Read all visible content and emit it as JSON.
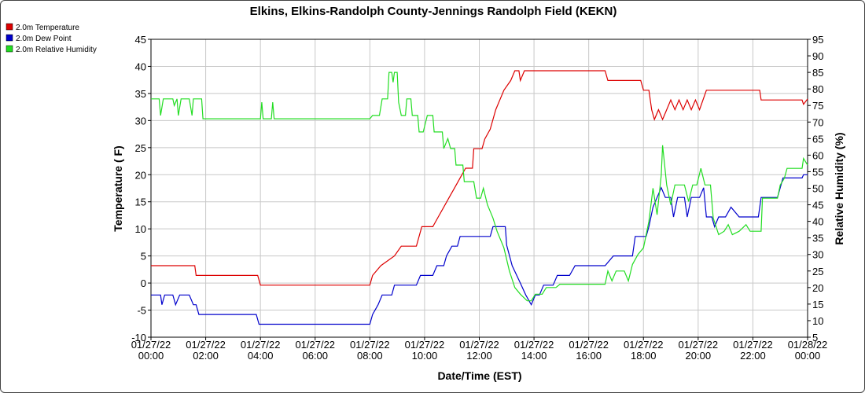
{
  "chart_data": {
    "type": "line",
    "title": "Elkins, Elkins-Randolph County-Jennings Randolph Field (KEKN)",
    "xlabel": "Date/Time (EST)",
    "ylabel": "Temperature ( F)",
    "y2label": "Relative Humidity (%)",
    "ylim": [
      -10,
      45
    ],
    "y2lim": [
      5,
      95
    ],
    "xlim": [
      0,
      24
    ],
    "grid": true,
    "legend_position": "top-left",
    "x_ticks": [
      {
        "hours": 0,
        "date": "01/27/22",
        "time": "00:00"
      },
      {
        "hours": 2,
        "date": "01/27/22",
        "time": "02:00"
      },
      {
        "hours": 4,
        "date": "01/27/22",
        "time": "04:00"
      },
      {
        "hours": 6,
        "date": "01/27/22",
        "time": "06:00"
      },
      {
        "hours": 8,
        "date": "01/27/22",
        "time": "08:00"
      },
      {
        "hours": 10,
        "date": "01/27/22",
        "time": "10:00"
      },
      {
        "hours": 12,
        "date": "01/27/22",
        "time": "12:00"
      },
      {
        "hours": 14,
        "date": "01/27/22",
        "time": "14:00"
      },
      {
        "hours": 16,
        "date": "01/27/22",
        "time": "16:00"
      },
      {
        "hours": 18,
        "date": "01/27/22",
        "time": "18:00"
      },
      {
        "hours": 20,
        "date": "01/27/22",
        "time": "20:00"
      },
      {
        "hours": 22,
        "date": "01/27/22",
        "time": "22:00"
      },
      {
        "hours": 24,
        "date": "01/28/22",
        "time": "00:00"
      }
    ],
    "y_ticks": [
      -10,
      -5,
      0,
      5,
      10,
      15,
      20,
      25,
      30,
      35,
      40,
      45
    ],
    "y2_ticks": [
      5,
      10,
      15,
      20,
      25,
      30,
      35,
      40,
      45,
      50,
      55,
      60,
      65,
      70,
      75,
      80,
      85,
      90,
      95
    ],
    "series": [
      {
        "name": "2.0m Temperature",
        "color": "#dd0000",
        "axis": "left",
        "points": [
          [
            0,
            3.2
          ],
          [
            1.6,
            3.2
          ],
          [
            1.65,
            1.4
          ],
          [
            3.9,
            1.4
          ],
          [
            4.0,
            -0.4
          ],
          [
            8.0,
            -0.4
          ],
          [
            8.1,
            1.4
          ],
          [
            8.4,
            3.2
          ],
          [
            8.9,
            5.0
          ],
          [
            9.15,
            6.8
          ],
          [
            9.7,
            6.8
          ],
          [
            9.9,
            10.4
          ],
          [
            10.3,
            10.4
          ],
          [
            10.5,
            12.2
          ],
          [
            10.7,
            14.0
          ],
          [
            10.9,
            15.8
          ],
          [
            11.1,
            17.6
          ],
          [
            11.3,
            19.4
          ],
          [
            11.5,
            21.2
          ],
          [
            11.75,
            21.2
          ],
          [
            11.8,
            24.8
          ],
          [
            12.1,
            24.8
          ],
          [
            12.2,
            26.6
          ],
          [
            12.4,
            28.4
          ],
          [
            12.6,
            32.0
          ],
          [
            12.9,
            35.6
          ],
          [
            13.15,
            37.4
          ],
          [
            13.3,
            39.2
          ],
          [
            13.45,
            39.2
          ],
          [
            13.5,
            37.4
          ],
          [
            13.65,
            39.2
          ],
          [
            16.6,
            39.2
          ],
          [
            16.7,
            37.4
          ],
          [
            17.9,
            37.4
          ],
          [
            18.0,
            35.6
          ],
          [
            18.2,
            35.6
          ],
          [
            18.3,
            32.0
          ],
          [
            18.4,
            30.2
          ],
          [
            18.55,
            32.0
          ],
          [
            18.7,
            30.2
          ],
          [
            18.85,
            32.0
          ],
          [
            19.0,
            33.8
          ],
          [
            19.15,
            32.0
          ],
          [
            19.3,
            33.8
          ],
          [
            19.45,
            32.0
          ],
          [
            19.6,
            33.8
          ],
          [
            19.75,
            32.0
          ],
          [
            19.9,
            33.8
          ],
          [
            20.05,
            32.0
          ],
          [
            20.3,
            35.6
          ],
          [
            21.9,
            35.6
          ],
          [
            22.25,
            35.6
          ],
          [
            22.3,
            33.8
          ],
          [
            23.8,
            33.8
          ],
          [
            23.85,
            33.0
          ],
          [
            24.0,
            34.0
          ]
        ]
      },
      {
        "name": "2.0m Dew Point",
        "color": "#0000cc",
        "axis": "left",
        "points": [
          [
            0,
            -2.2
          ],
          [
            0.35,
            -2.2
          ],
          [
            0.4,
            -4.0
          ],
          [
            0.5,
            -2.2
          ],
          [
            0.8,
            -2.2
          ],
          [
            0.9,
            -4.0
          ],
          [
            1.05,
            -2.2
          ],
          [
            1.4,
            -2.2
          ],
          [
            1.55,
            -4.0
          ],
          [
            1.65,
            -4.0
          ],
          [
            1.75,
            -5.8
          ],
          [
            3.85,
            -5.8
          ],
          [
            3.95,
            -7.6
          ],
          [
            8.0,
            -7.6
          ],
          [
            8.1,
            -5.8
          ],
          [
            8.3,
            -4.0
          ],
          [
            8.45,
            -2.2
          ],
          [
            8.8,
            -2.2
          ],
          [
            8.9,
            -0.4
          ],
          [
            9.7,
            -0.4
          ],
          [
            9.85,
            1.4
          ],
          [
            10.3,
            1.4
          ],
          [
            10.45,
            3.2
          ],
          [
            10.7,
            3.2
          ],
          [
            10.8,
            5.0
          ],
          [
            11.0,
            6.8
          ],
          [
            11.2,
            6.8
          ],
          [
            11.3,
            8.6
          ],
          [
            12.4,
            8.6
          ],
          [
            12.5,
            10.4
          ],
          [
            12.95,
            10.4
          ],
          [
            13.0,
            7.0
          ],
          [
            13.2,
            3.2
          ],
          [
            13.5,
            0.0
          ],
          [
            13.7,
            -2.2
          ],
          [
            13.9,
            -4.0
          ],
          [
            14.05,
            -2.2
          ],
          [
            14.2,
            -2.2
          ],
          [
            14.35,
            -0.4
          ],
          [
            14.7,
            -0.4
          ],
          [
            14.85,
            1.4
          ],
          [
            15.3,
            1.4
          ],
          [
            15.5,
            3.2
          ],
          [
            16.6,
            3.2
          ],
          [
            16.9,
            5.0
          ],
          [
            17.6,
            5.0
          ],
          [
            17.7,
            8.6
          ],
          [
            18.1,
            8.6
          ],
          [
            18.2,
            10.4
          ],
          [
            18.35,
            14.0
          ],
          [
            18.5,
            15.8
          ],
          [
            18.65,
            17.6
          ],
          [
            18.8,
            15.8
          ],
          [
            19.0,
            15.8
          ],
          [
            19.1,
            12.2
          ],
          [
            19.25,
            15.8
          ],
          [
            19.5,
            15.8
          ],
          [
            19.6,
            12.2
          ],
          [
            19.75,
            15.8
          ],
          [
            20.05,
            15.8
          ],
          [
            20.2,
            17.6
          ],
          [
            20.3,
            12.2
          ],
          [
            20.5,
            12.2
          ],
          [
            20.6,
            10.4
          ],
          [
            20.75,
            12.2
          ],
          [
            21.0,
            12.2
          ],
          [
            21.2,
            14.0
          ],
          [
            21.5,
            12.2
          ],
          [
            22.2,
            12.2
          ],
          [
            22.3,
            15.8
          ],
          [
            22.9,
            15.8
          ],
          [
            23.0,
            17.6
          ],
          [
            23.1,
            19.4
          ],
          [
            23.8,
            19.4
          ],
          [
            23.85,
            20.0
          ],
          [
            24.0,
            20.0
          ]
        ]
      },
      {
        "name": "2.0m Relative Humidity",
        "color": "#22dd22",
        "axis": "right",
        "points": [
          [
            0,
            77
          ],
          [
            0.3,
            77
          ],
          [
            0.35,
            72
          ],
          [
            0.45,
            77
          ],
          [
            0.8,
            77
          ],
          [
            0.85,
            75
          ],
          [
            0.95,
            77
          ],
          [
            1.0,
            72
          ],
          [
            1.1,
            77
          ],
          [
            1.4,
            77
          ],
          [
            1.5,
            72
          ],
          [
            1.55,
            77
          ],
          [
            1.85,
            77
          ],
          [
            1.9,
            71
          ],
          [
            4.0,
            71
          ],
          [
            4.05,
            76
          ],
          [
            4.1,
            71
          ],
          [
            4.4,
            71
          ],
          [
            4.45,
            76
          ],
          [
            4.5,
            71
          ],
          [
            8.0,
            71
          ],
          [
            8.1,
            72
          ],
          [
            8.35,
            72
          ],
          [
            8.45,
            77
          ],
          [
            8.65,
            77
          ],
          [
            8.7,
            85
          ],
          [
            8.8,
            85
          ],
          [
            8.85,
            82
          ],
          [
            8.9,
            85
          ],
          [
            9.0,
            85
          ],
          [
            9.05,
            76
          ],
          [
            9.15,
            72
          ],
          [
            9.3,
            72
          ],
          [
            9.35,
            77
          ],
          [
            9.5,
            77
          ],
          [
            9.55,
            72
          ],
          [
            9.75,
            72
          ],
          [
            9.8,
            67
          ],
          [
            9.95,
            67
          ],
          [
            10.1,
            72
          ],
          [
            10.3,
            72
          ],
          [
            10.35,
            67
          ],
          [
            10.65,
            67
          ],
          [
            10.7,
            62
          ],
          [
            10.85,
            65
          ],
          [
            10.95,
            62
          ],
          [
            11.1,
            62
          ],
          [
            11.15,
            57
          ],
          [
            11.4,
            57
          ],
          [
            11.45,
            52
          ],
          [
            11.8,
            52
          ],
          [
            11.9,
            47
          ],
          [
            12.05,
            47
          ],
          [
            12.15,
            50
          ],
          [
            12.3,
            45
          ],
          [
            12.5,
            41
          ],
          [
            12.65,
            37
          ],
          [
            12.9,
            32
          ],
          [
            13.1,
            25
          ],
          [
            13.3,
            20
          ],
          [
            13.5,
            18
          ],
          [
            13.75,
            16
          ],
          [
            13.9,
            16
          ],
          [
            14.05,
            18
          ],
          [
            14.3,
            18
          ],
          [
            14.45,
            20
          ],
          [
            14.8,
            20
          ],
          [
            14.95,
            21
          ],
          [
            16.6,
            21
          ],
          [
            16.7,
            25
          ],
          [
            16.85,
            22
          ],
          [
            17.0,
            25
          ],
          [
            17.3,
            25
          ],
          [
            17.45,
            22
          ],
          [
            17.6,
            27
          ],
          [
            17.8,
            30
          ],
          [
            18.0,
            32
          ],
          [
            18.2,
            40
          ],
          [
            18.35,
            50
          ],
          [
            18.5,
            42
          ],
          [
            18.65,
            54
          ],
          [
            18.7,
            63
          ],
          [
            18.85,
            51
          ],
          [
            19.0,
            45
          ],
          [
            19.15,
            51
          ],
          [
            19.5,
            51
          ],
          [
            19.65,
            46
          ],
          [
            19.8,
            51
          ],
          [
            19.95,
            51
          ],
          [
            20.1,
            56
          ],
          [
            20.25,
            51
          ],
          [
            20.45,
            51
          ],
          [
            20.55,
            41
          ],
          [
            20.75,
            36
          ],
          [
            20.95,
            37
          ],
          [
            21.1,
            39
          ],
          [
            21.25,
            36
          ],
          [
            21.5,
            37
          ],
          [
            21.75,
            39
          ],
          [
            21.9,
            37
          ],
          [
            22.3,
            37
          ],
          [
            22.35,
            47
          ],
          [
            22.9,
            47
          ],
          [
            23.0,
            51
          ],
          [
            23.15,
            53
          ],
          [
            23.25,
            56
          ],
          [
            23.8,
            56
          ],
          [
            23.85,
            59
          ],
          [
            24.0,
            57
          ]
        ]
      }
    ]
  }
}
